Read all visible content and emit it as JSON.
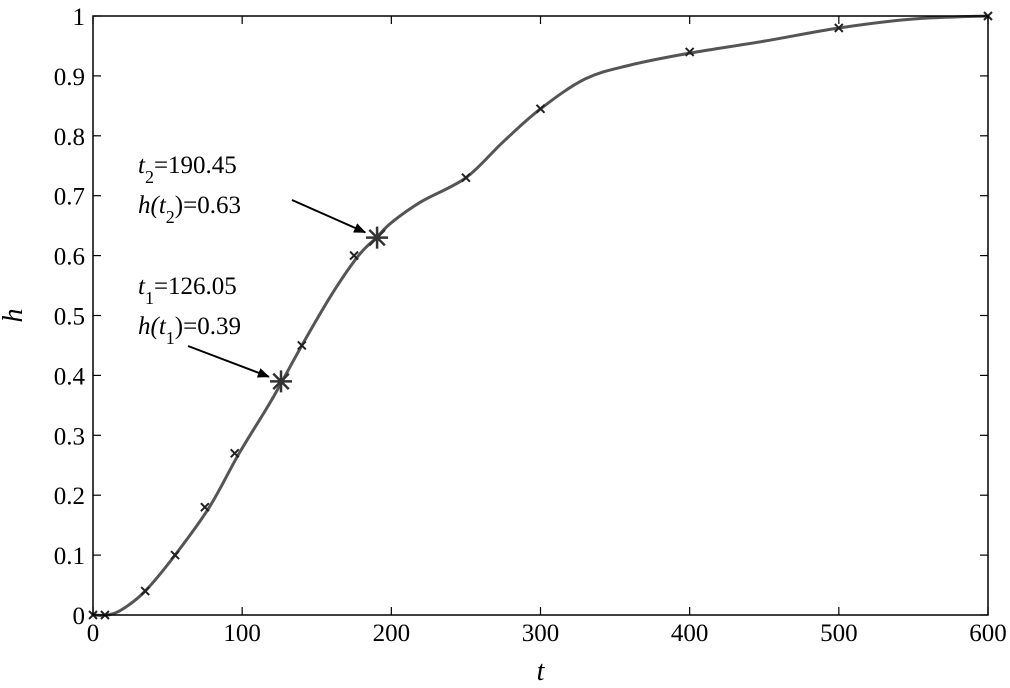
{
  "chart_data": {
    "type": "line",
    "title": "",
    "xlabel": "t",
    "ylabel": "h",
    "xlim": [
      0,
      600
    ],
    "ylim": [
      0,
      1
    ],
    "grid": false,
    "x_ticks": [
      0,
      100,
      200,
      300,
      400,
      500,
      600
    ],
    "y_ticks": [
      0,
      0.1,
      0.2,
      0.3,
      0.4,
      0.5,
      0.6,
      0.7,
      0.8,
      0.9,
      1
    ],
    "x_tick_labels": [
      "0",
      "100",
      "200",
      "300",
      "400",
      "500",
      "600"
    ],
    "y_tick_labels": [
      "0",
      "0.1",
      "0.2",
      "0.3",
      "0.4",
      "0.5",
      "0.6",
      "0.7",
      "0.8",
      "0.9",
      "1"
    ],
    "series": [
      {
        "x": [
          0,
          10,
          20,
          35,
          55,
          78,
          98,
          120,
          140,
          160,
          178,
          190,
          200,
          220,
          250,
          275,
          300,
          330,
          360,
          400,
          450,
          500,
          550,
          600
        ],
        "y": [
          0,
          0,
          0.01,
          0.04,
          0.1,
          0.18,
          0.27,
          0.36,
          0.45,
          0.535,
          0.6,
          0.63,
          0.655,
          0.69,
          0.73,
          0.79,
          0.845,
          0.895,
          0.918,
          0.938,
          0.958,
          0.98,
          0.995,
          1.0
        ]
      }
    ],
    "markers": [
      {
        "x": 0,
        "y": 0
      },
      {
        "x": 8,
        "y": 0
      },
      {
        "x": 35,
        "y": 0.04
      },
      {
        "x": 55,
        "y": 0.1
      },
      {
        "x": 75,
        "y": 0.18
      },
      {
        "x": 95,
        "y": 0.27
      },
      {
        "x": 140,
        "y": 0.45
      },
      {
        "x": 175,
        "y": 0.6
      },
      {
        "x": 250,
        "y": 0.73
      },
      {
        "x": 300,
        "y": 0.845
      },
      {
        "x": 400,
        "y": 0.94
      },
      {
        "x": 500,
        "y": 0.98
      },
      {
        "x": 600,
        "y": 1.0
      }
    ],
    "annotations": [
      {
        "var": "t",
        "sub": "1",
        "t_value": "=126.05",
        "h_prefix": "h(",
        "h_var": "t",
        "h_sub": "1",
        "h_value": ")=0.39",
        "point": {
          "x": 126.05,
          "y": 0.39
        }
      },
      {
        "var": "t",
        "sub": "2",
        "t_value": "=190.45",
        "h_prefix": "h(",
        "h_var": "t",
        "h_sub": "2",
        "h_value": ")=0.63",
        "point": {
          "x": 190.45,
          "y": 0.63
        }
      }
    ]
  }
}
